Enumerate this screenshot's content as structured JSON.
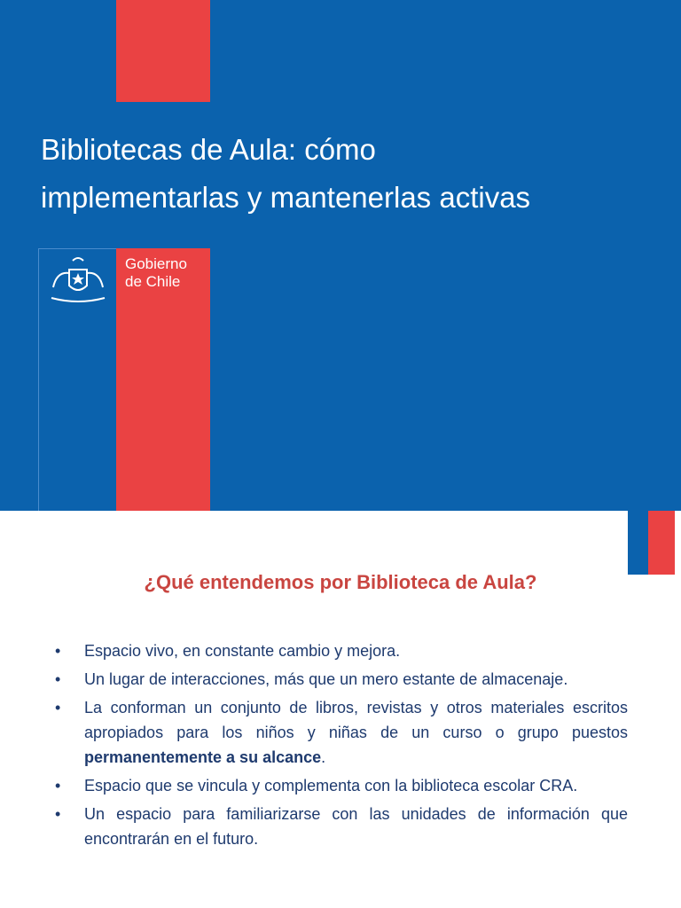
{
  "slide1": {
    "title_lines": [
      "Bibliotecas de Aula: cómo",
      "implementarlas y mantenerlas activas"
    ],
    "logo_lines": [
      "Gobierno",
      "de Chile"
    ]
  },
  "slide2": {
    "heading": "¿Qué entendemos por Biblioteca de Aula?",
    "bullets": [
      {
        "text": "Espacio vivo, en constante cambio y mejora."
      },
      {
        "text": "Un lugar de interacciones, más que un mero estante de almacenaje."
      },
      {
        "text": "La conforman un conjunto de libros, revistas y otros materiales escritos apropiados para los niños y niñas de un curso o grupo puestos ",
        "bold": "permanentemente a su alcance",
        "after": "."
      },
      {
        "text": "Espacio que se vincula y complementa con la biblioteca escolar CRA."
      },
      {
        "text": "Un espacio para familiarizarse con las unidades de información que encontrarán en el futuro."
      }
    ]
  }
}
